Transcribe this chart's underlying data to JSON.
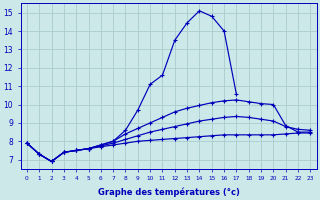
{
  "xlabel": "Graphe des températures (°c)",
  "bg_color": "#cce8e8",
  "grid_color": "#aacccc",
  "line_color": "#0000bb",
  "x": [
    0,
    1,
    2,
    3,
    4,
    5,
    6,
    7,
    8,
    9,
    10,
    11,
    12,
    13,
    14,
    15,
    16,
    17,
    18,
    19,
    20,
    21,
    22,
    23
  ],
  "curve1": [
    7.9,
    7.3,
    6.9,
    7.4,
    7.5,
    7.6,
    7.8,
    8.0,
    8.6,
    9.7,
    11.1,
    11.6,
    13.5,
    14.45,
    15.1,
    14.8,
    14.0,
    10.55,
    null,
    null,
    null,
    null,
    null,
    null
  ],
  "curve2": [
    7.9,
    7.3,
    6.9,
    7.4,
    7.5,
    7.6,
    7.8,
    8.0,
    8.4,
    8.7,
    9.0,
    9.3,
    9.6,
    9.8,
    9.95,
    10.1,
    10.2,
    10.25,
    10.15,
    10.05,
    10.0,
    8.85,
    8.5,
    8.5
  ],
  "curve3": [
    7.9,
    7.3,
    6.9,
    7.4,
    7.5,
    7.6,
    7.75,
    7.9,
    8.1,
    8.3,
    8.5,
    8.65,
    8.8,
    8.95,
    9.1,
    9.2,
    9.3,
    9.35,
    9.3,
    9.2,
    9.1,
    8.8,
    8.65,
    8.6
  ],
  "curve4": [
    7.9,
    7.3,
    6.9,
    7.4,
    7.5,
    7.6,
    7.7,
    7.8,
    7.9,
    8.0,
    8.05,
    8.1,
    8.15,
    8.2,
    8.25,
    8.3,
    8.35,
    8.35,
    8.35,
    8.35,
    8.35,
    8.4,
    8.45,
    8.45
  ],
  "xlim": [
    -0.5,
    23.5
  ],
  "ylim": [
    6.5,
    15.5
  ],
  "yticks": [
    7,
    8,
    9,
    10,
    11,
    12,
    13,
    14,
    15
  ],
  "xticks": [
    0,
    1,
    2,
    3,
    4,
    5,
    6,
    7,
    8,
    9,
    10,
    11,
    12,
    13,
    14,
    15,
    16,
    17,
    18,
    19,
    20,
    21,
    22,
    23
  ]
}
